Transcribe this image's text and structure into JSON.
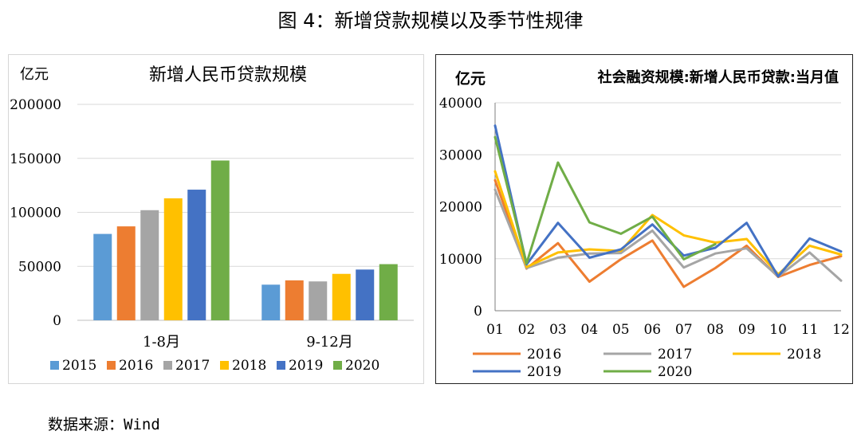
{
  "figure_title": "图 4：新增贷款规模以及季节性规律",
  "source": "数据来源：Wind",
  "colors": {
    "2015": "#5b9bd5",
    "2016": "#ed7d31",
    "2017": "#a5a5a5",
    "2018": "#ffc000",
    "2019": "#4472c4",
    "2020": "#70ad47"
  },
  "chart_data": [
    {
      "type": "bar",
      "title": "新增人民币贷款规模",
      "unit": "亿元",
      "categories": [
        "1-8月",
        "9-12月"
      ],
      "ylim": [
        0,
        200000
      ],
      "yticks": [
        0,
        50000,
        100000,
        150000,
        200000
      ],
      "grid": true,
      "legend_position": "bottom",
      "series": [
        {
          "name": "2015",
          "values": [
            80000,
            33000
          ]
        },
        {
          "name": "2016",
          "values": [
            87000,
            37000
          ]
        },
        {
          "name": "2017",
          "values": [
            102000,
            36000
          ]
        },
        {
          "name": "2018",
          "values": [
            113000,
            43000
          ]
        },
        {
          "name": "2019",
          "values": [
            121000,
            47000
          ]
        },
        {
          "name": "2020",
          "values": [
            148000,
            52000
          ]
        }
      ]
    },
    {
      "type": "line",
      "title": "社会融资规模:新增人民币贷款:当月值",
      "unit": "亿元",
      "x": [
        "01",
        "02",
        "03",
        "04",
        "05",
        "06",
        "07",
        "08",
        "09",
        "10",
        "11",
        "12"
      ],
      "ylim": [
        0,
        40000
      ],
      "yticks": [
        0,
        10000,
        20000,
        30000,
        40000
      ],
      "grid": true,
      "legend_position": "bottom",
      "series": [
        {
          "name": "2016",
          "values": [
            25100,
            8100,
            13000,
            5600,
            9900,
            13500,
            4600,
            8200,
            12500,
            6500,
            8800,
            10500
          ]
        },
        {
          "name": "2017",
          "values": [
            23300,
            8200,
            10200,
            11000,
            11100,
            15400,
            8300,
            11000,
            12000,
            6600,
            11200,
            5800
          ]
        },
        {
          "name": "2018",
          "values": [
            26800,
            8400,
            11200,
            11800,
            11500,
            18400,
            14500,
            13100,
            13800,
            7000,
            12500,
            10800
          ]
        },
        {
          "name": "2019",
          "values": [
            35600,
            8900,
            16900,
            10200,
            11800,
            16600,
            10600,
            12100,
            16900,
            6600,
            13900,
            11400
          ]
        },
        {
          "name": "2020",
          "values": [
            33400,
            9100,
            28500,
            17000,
            14800,
            18100,
            9900,
            12800,
            null,
            null,
            null,
            null
          ]
        }
      ]
    }
  ]
}
